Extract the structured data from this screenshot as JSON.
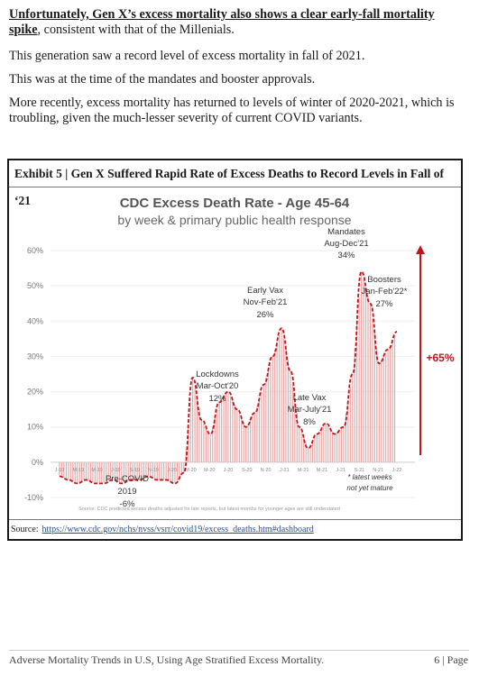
{
  "paragraphs": {
    "p1_underlined": "Unfortunately, Gen X’s excess mortality also shows a clear early-fall mortality spike",
    "p1_rest": ", consistent with that of the Millenials.",
    "p2": "This generation saw a record level of excess mortality in fall of 2021.",
    "p3": "This was at the time of the mandates and booster approvals.",
    "p4": "More recently, excess mortality has returned to levels of winter of 2020-2021, which is troubling, given the much-lesser severity of current COVID variants."
  },
  "exhibit": {
    "title": "Exhibit 5 | Gen X Suffered Rapid Rate of Excess Deaths to Record Levels in Fall of ‘21",
    "source_label": "Source:",
    "source_url": "https://www.cdc.gov/nchs/nvss/vsrr/covid19/excess_deaths.htm#dashboard"
  },
  "chart_data": {
    "type": "line",
    "title": "CDC Excess Death Rate - Age 45-64",
    "subtitle": "by week & primary public health response",
    "y_ticks": [
      "60%",
      "50%",
      "40%",
      "30%",
      "20%",
      "10%",
      "0%",
      "-10%"
    ],
    "ylim": [
      -10,
      60
    ],
    "x_tick_labels": [
      "J-19",
      "M-19",
      "M-19",
      "J-19",
      "S-19",
      "N-19",
      "J-20",
      "M-20",
      "M-20",
      "J-20",
      "S-20",
      "N-20",
      "J-21",
      "M-21",
      "M-21",
      "J-21",
      "S-21",
      "N-21",
      "J-22"
    ],
    "series": [
      {
        "x": [
          "2019-01",
          "2019-02",
          "2019-03",
          "2019-04",
          "2019-05",
          "2019-06",
          "2019-07",
          "2019-08",
          "2019-09",
          "2019-10",
          "2019-11",
          "2019-12",
          "2020-01",
          "2020-02",
          "2020-03",
          "2020-04",
          "2020-05",
          "2020-06",
          "2020-07",
          "2020-08",
          "2020-09",
          "2020-10",
          "2020-11",
          "2020-12",
          "2021-01",
          "2021-02",
          "2021-03",
          "2021-04",
          "2021-05",
          "2021-06",
          "2021-07",
          "2021-08",
          "2021-09",
          "2021-10",
          "2021-11",
          "2021-12",
          "2022-01",
          "2022-02",
          "2022-03"
        ],
        "values": [
          -4,
          -5,
          -6,
          -5,
          -6,
          -6,
          -5,
          -6,
          -5,
          -5,
          -4,
          -5,
          -5,
          -6,
          -3,
          24,
          12,
          8,
          17,
          20,
          15,
          10,
          14,
          22,
          30,
          38,
          26,
          10,
          4,
          8,
          11,
          8,
          10,
          25,
          54,
          45,
          28,
          32,
          37
        ]
      }
    ],
    "annotations": {
      "precovid": [
        "Pre-COVID",
        "2019",
        "-6%"
      ],
      "lockdowns": [
        "Lockdowns",
        "Mar-Oct'20",
        "12%"
      ],
      "early_vax": [
        "Early Vax",
        "Nov-Feb'21",
        "26%"
      ],
      "late_vax": [
        "Late Vax",
        "Mar-July'21",
        "8%"
      ],
      "mandates": [
        "Mandates",
        "Aug-Dec'21",
        "34%"
      ],
      "boosters": [
        "Boosters",
        "Jan-Feb'22*",
        "27%"
      ],
      "change": "+65%",
      "note": [
        "* latest weeks",
        "not yet mature"
      ],
      "source_note": "Source: CDC predicted excess deaths adjusted for late reports, but latest months for younger ages are still understated"
    },
    "colors": {
      "line": "#c0141b",
      "bars": "#e8a8a8",
      "arrow": "#c0141b",
      "change_text": "#c0141b"
    }
  },
  "footer": {
    "left": "Adverse Mortality Trends in U.S, Using Age Stratified Excess Mortality.",
    "right": "6 | Page"
  }
}
